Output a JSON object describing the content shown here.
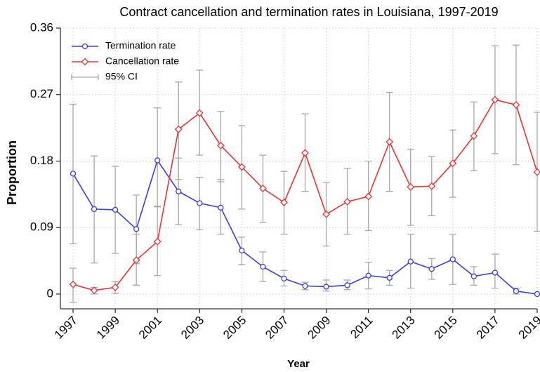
{
  "chart_data": {
    "type": "line",
    "title": "Contract cancellation and termination rates in Louisiana, 1997-2019",
    "x_label": "Year",
    "y_label": "Proportion",
    "x": [
      1997,
      1998,
      1999,
      2000,
      2001,
      2002,
      2003,
      2004,
      2005,
      2006,
      2007,
      2008,
      2009,
      2010,
      2011,
      2012,
      2013,
      2014,
      2015,
      2016,
      2017,
      2018,
      2019
    ],
    "series": [
      {
        "name": "Termination rate",
        "color": "#3a3af0",
        "marker": "circle",
        "values": [
          0.163,
          0.115,
          0.114,
          0.088,
          0.181,
          0.139,
          0.123,
          0.117,
          0.059,
          0.037,
          0.021,
          0.011,
          0.01,
          0.012,
          0.025,
          0.022,
          0.044,
          0.034,
          0.047,
          0.024,
          0.029,
          0.004,
          0.0
        ],
        "ci_lower": [
          0.068,
          0.042,
          0.055,
          0.041,
          0.118,
          0.094,
          0.087,
          0.081,
          0.04,
          0.017,
          0.011,
          0.006,
          0.004,
          0.006,
          0.007,
          0.012,
          0.008,
          0.02,
          0.013,
          0.012,
          0.008,
          0.0,
          0.0
        ],
        "ci_upper": [
          0.257,
          0.187,
          0.173,
          0.134,
          0.252,
          0.184,
          0.158,
          0.155,
          0.077,
          0.057,
          0.032,
          0.016,
          0.019,
          0.019,
          0.043,
          0.032,
          0.081,
          0.048,
          0.081,
          0.037,
          0.054,
          0.008,
          0.0
        ]
      },
      {
        "name": "Cancellation rate",
        "color": "#ee3030",
        "marker": "diamond",
        "values": [
          0.013,
          0.005,
          0.009,
          0.046,
          0.071,
          0.223,
          0.245,
          0.201,
          0.172,
          0.143,
          0.124,
          0.191,
          0.108,
          0.125,
          0.132,
          0.206,
          0.145,
          0.146,
          0.177,
          0.214,
          0.263,
          0.256,
          0.165
        ],
        "ci_lower": [
          -0.011,
          0.0,
          0.001,
          0.012,
          0.025,
          0.155,
          0.188,
          0.152,
          0.115,
          0.097,
          0.081,
          0.139,
          0.065,
          0.081,
          0.086,
          0.139,
          0.093,
          0.106,
          0.131,
          0.167,
          0.19,
          0.175,
          0.085
        ],
        "ci_upper": [
          0.035,
          0.009,
          0.017,
          0.081,
          0.119,
          0.287,
          0.303,
          0.247,
          0.228,
          0.188,
          0.166,
          0.244,
          0.151,
          0.17,
          0.18,
          0.273,
          0.196,
          0.186,
          0.222,
          0.26,
          0.336,
          0.337,
          0.246
        ]
      }
    ],
    "ci_label": "95% CI",
    "ci_color": "#a8a8a8",
    "xlim": [
      1996.4,
      2019
    ],
    "xticks": [
      1997,
      1999,
      2001,
      2003,
      2005,
      2007,
      2009,
      2011,
      2013,
      2015,
      2017,
      2019
    ],
    "ylim": [
      -0.02,
      0.36
    ],
    "yticks": [
      0,
      0.09,
      0.18,
      0.27,
      0.36
    ],
    "grid": true,
    "legend": "upper left"
  }
}
